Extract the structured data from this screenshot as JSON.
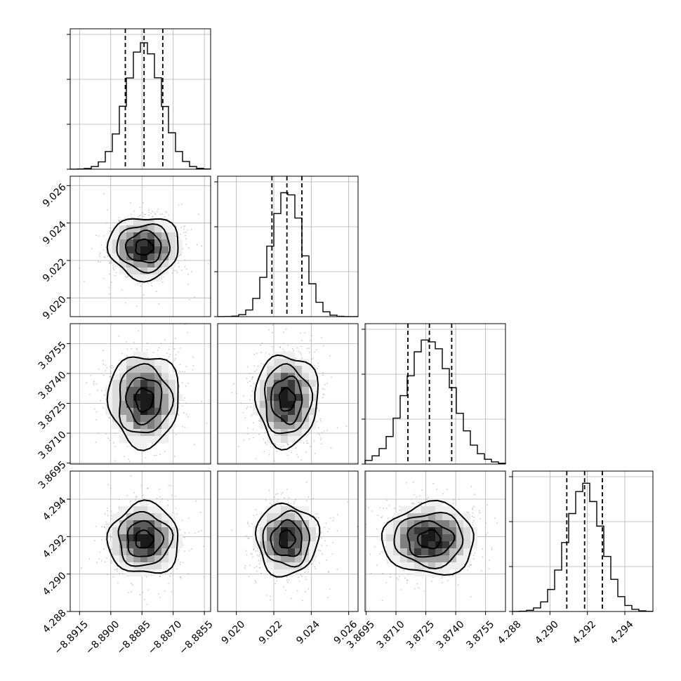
{
  "chart_data": {
    "type": "corner",
    "parameters": 4,
    "grid": true,
    "quantiles": [
      0.16,
      0.5,
      0.84
    ],
    "dimensions": [
      {
        "index": 0,
        "mean": -8.8884,
        "sd": 0.00085,
        "range": [
          -8.89195,
          -8.8852
        ],
        "ticks": [
          -8.8915,
          -8.89,
          -8.8885,
          -8.887,
          -8.8855
        ],
        "tick_labels": [
          "−8.8915",
          "−8.8900",
          "−8.8885",
          "−8.8870",
          "−8.8855"
        ],
        "quantile_values": [
          -8.8893,
          -8.8884,
          -8.8875
        ]
      },
      {
        "index": 1,
        "mean": 9.0227,
        "sd": 0.00083,
        "range": [
          9.019,
          9.0265
        ],
        "ticks": [
          9.02,
          9.022,
          9.024,
          9.026
        ],
        "tick_labels": [
          "9.020",
          "9.022",
          "9.024",
          "9.026"
        ],
        "quantile_values": [
          9.0219,
          9.0227,
          9.0235
        ]
      },
      {
        "index": 2,
        "mean": 3.87268,
        "sd": 0.00115,
        "range": [
          3.86945,
          3.8765
        ],
        "ticks": [
          3.8695,
          3.871,
          3.8725,
          3.874,
          3.8755
        ],
        "tick_labels": [
          "3.8695",
          "3.8710",
          "3.8725",
          "3.8740",
          "3.8755"
        ],
        "quantile_values": [
          3.8716,
          3.87268,
          3.8738
        ]
      },
      {
        "index": 3,
        "mean": 4.29185,
        "sd": 0.00095,
        "range": [
          4.288,
          4.2955
        ],
        "ticks": [
          4.288,
          4.29,
          4.292,
          4.294
        ],
        "tick_labels": [
          "4.288",
          "4.290",
          "4.292",
          "4.294"
        ],
        "quantile_values": [
          4.2909,
          4.29185,
          4.2928
        ]
      }
    ],
    "colors": {
      "samples": "#9a9a9a",
      "density": "#000000",
      "contours": "#000000"
    }
  }
}
